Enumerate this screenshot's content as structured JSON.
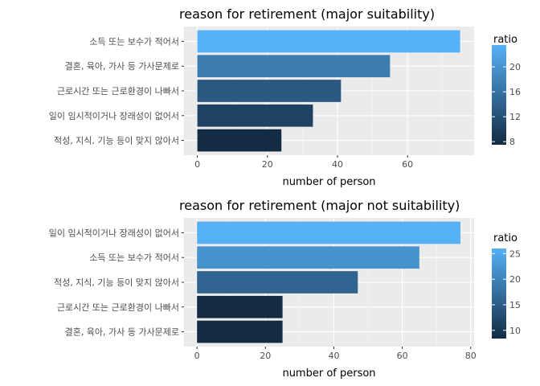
{
  "chart_data": [
    {
      "type": "bar",
      "orientation": "horizontal",
      "title": "reason for retirement (major suitability)",
      "xlabel": "number of person",
      "ylabel": "",
      "categories": [
        "소득 또는 보수가 적어서",
        "결혼, 육아, 가사 등 가사문제로",
        "근로시간 또는 근로환경이 나빠서",
        "일이 임시적이거나 장래성이 없어서",
        "적성, 지식, 기능 등이 맞지 않아서"
      ],
      "values": [
        75,
        55,
        41,
        33,
        24
      ],
      "ratio": [
        23.5,
        17.3,
        12.9,
        10.3,
        7.5
      ],
      "xlim": [
        0,
        75
      ],
      "xticks": [
        0,
        20,
        40,
        60
      ],
      "legend": {
        "title": "ratio",
        "placement": "right",
        "range": [
          7.5,
          23.5
        ],
        "ticks": [
          8,
          12,
          16,
          20
        ],
        "color_low": "#132b43",
        "color_high": "#56b1f7"
      },
      "grid": true
    },
    {
      "type": "bar",
      "orientation": "horizontal",
      "title": "reason for retirement (major not suitability)",
      "xlabel": "number of person",
      "ylabel": "",
      "categories": [
        "일이 임시적이거나 장래성이 없어서",
        "소득 또는 보수가 적어서",
        "적성, 지식, 기능 등이 맞지 않아서",
        "근로시간 또는 근로환경이 나빠서",
        "결혼, 육아, 가사 등 가사문제로"
      ],
      "values": [
        77,
        65,
        47,
        25,
        25
      ],
      "ratio": [
        26.0,
        22.0,
        15.9,
        8.4,
        8.4
      ],
      "xlim": [
        0,
        80
      ],
      "xticks": [
        0,
        20,
        40,
        60,
        80
      ],
      "legend": {
        "title": "ratio",
        "placement": "right",
        "range": [
          8.4,
          26.0
        ],
        "ticks": [
          10,
          15,
          20,
          25
        ],
        "color_low": "#132b43",
        "color_high": "#56b1f7"
      },
      "grid": true
    }
  ],
  "colors": {
    "panel_background": "#ebebeb",
    "grid_major": "#ffffff",
    "grid_minor": "#f5f5f5"
  }
}
